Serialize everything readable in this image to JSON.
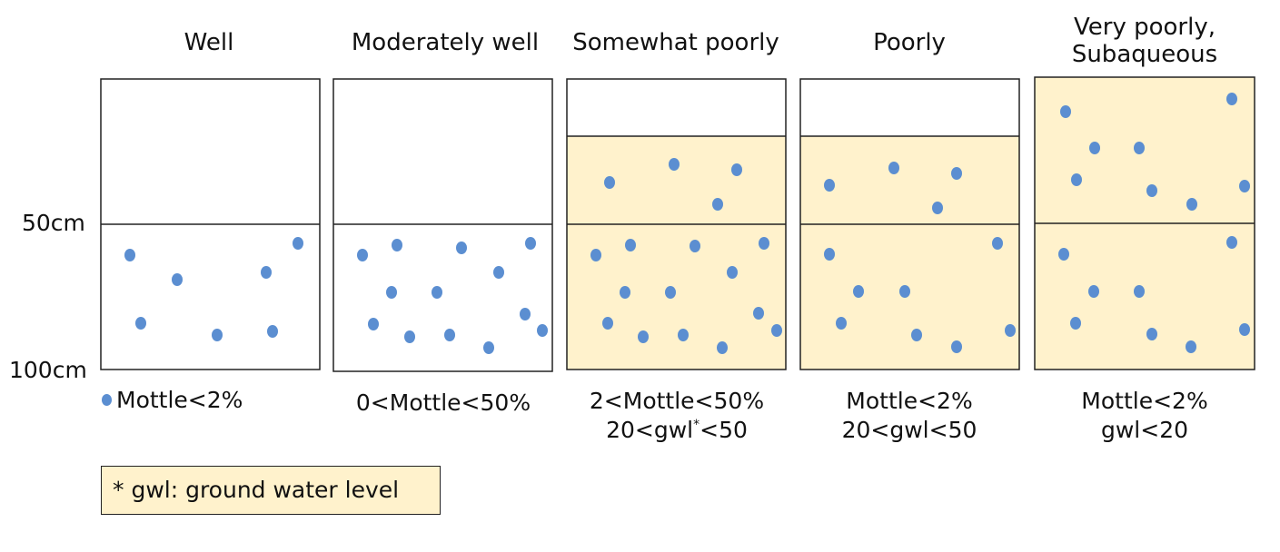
{
  "depth_labels": {
    "top": "50cm",
    "bottom": "100cm"
  },
  "legend": {
    "label": "Mottle<2%",
    "dot_color": "#5b8ed1"
  },
  "note": "* gwl: ground water level",
  "colors": {
    "saturated": "#fff2cc",
    "border": "#222222",
    "mottle": "#5b8ed1"
  },
  "classes": [
    {
      "title_lines": [
        "Well"
      ],
      "caption_lines": [],
      "saturated": "none"
    },
    {
      "title_lines": [
        "Moderately well"
      ],
      "caption_lines": [
        "0<Mottle<50%"
      ],
      "saturated": "none"
    },
    {
      "title_lines": [
        "Somewhat poorly"
      ],
      "caption_lines": [
        "2<Mottle<50%",
        "20<gwl*<50"
      ],
      "saturated": "partial"
    },
    {
      "title_lines": [
        "Poorly"
      ],
      "caption_lines": [
        "Mottle<2%",
        "20<gwl<50"
      ],
      "saturated": "partial"
    },
    {
      "title_lines": [
        "Very poorly,",
        "Subaqueous"
      ],
      "caption_lines": [
        "Mottle<2%",
        "gwl<20"
      ],
      "saturated": "full"
    }
  ]
}
